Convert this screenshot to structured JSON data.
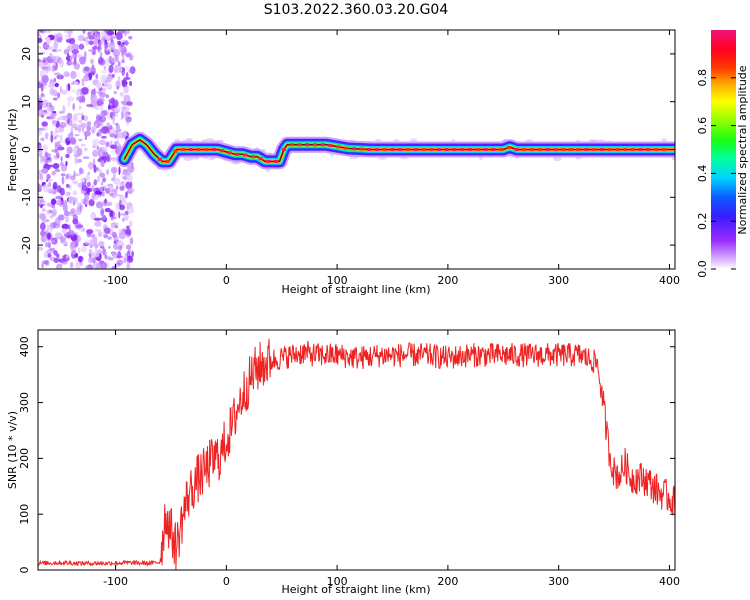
{
  "title": "S103.2022.360.03.20.G04",
  "colors": {
    "snr_line": "#ee2222",
    "axis": "#000000",
    "spectrogram_ridge": "#ff2020",
    "background": "#ffffff"
  },
  "chart_data": [
    {
      "type": "heatmap",
      "title": "S103.2022.360.03.20.G04",
      "xlabel": "Height of straight line (km)",
      "ylabel": "Frequency (Hz)",
      "xlim": [
        -170,
        405
      ],
      "ylim": [
        -25,
        25
      ],
      "xticks": [
        -100,
        0,
        100,
        200,
        300,
        400
      ],
      "yticks": [
        -20,
        -10,
        0,
        10,
        20
      ],
      "noise_region_x": [
        -170,
        -90
      ],
      "colorbar": {
        "label": "Normalized spectral amplitude",
        "range": [
          0.0,
          1.0
        ],
        "ticks": [
          0.0,
          0.2,
          0.4,
          0.6,
          0.8
        ],
        "colormap": "rainbow (white-violet-blue-cyan-green-yellow-red-magenta)"
      },
      "ridge": {
        "x": [
          -92,
          -85,
          -78,
          -72,
          -65,
          -58,
          -52,
          -45,
          -38,
          -30,
          -22,
          -15,
          -8,
          0,
          8,
          15,
          22,
          28,
          35,
          42,
          48,
          52,
          55,
          70,
          90,
          110,
          130,
          150,
          170,
          200,
          230,
          250,
          256,
          262,
          280,
          310,
          340,
          370,
          405
        ],
        "y": [
          -2,
          1,
          2,
          1,
          -1,
          -2.5,
          -2.5,
          0,
          0,
          0,
          0,
          0,
          0,
          -0.5,
          -1,
          -1,
          -1.5,
          -1.5,
          -2.5,
          -2.5,
          -2.5,
          0,
          1,
          1,
          1,
          0.2,
          0,
          0,
          0,
          0,
          0,
          0,
          0.5,
          0,
          0,
          0,
          0,
          0,
          0
        ]
      }
    },
    {
      "type": "line",
      "xlabel": "Height of straight line (km)",
      "ylabel": "SNR (10 * v/v)",
      "xlim": [
        -170,
        405
      ],
      "ylim": [
        0,
        430
      ],
      "xticks": [
        -100,
        0,
        100,
        200,
        300,
        400
      ],
      "yticks": [
        0,
        100,
        200,
        300,
        400
      ],
      "series": [
        {
          "x": [
            -170,
            -150,
            -130,
            -110,
            -90,
            -70,
            -60,
            -55,
            -50,
            -45,
            -40,
            -35,
            -30,
            -25,
            -20,
            -15,
            -10,
            -5,
            0,
            5,
            10,
            15,
            20,
            25,
            30,
            35,
            40,
            50,
            60,
            70,
            80,
            90,
            100,
            120,
            140,
            160,
            180,
            200,
            220,
            240,
            260,
            280,
            300,
            320,
            335,
            340,
            345,
            350,
            355,
            360,
            365,
            370,
            375,
            380,
            390,
            400,
            405
          ],
          "values": [
            12,
            13,
            12,
            12,
            13,
            12,
            14,
            100,
            70,
            40,
            90,
            130,
            150,
            165,
            175,
            190,
            200,
            205,
            235,
            255,
            290,
            315,
            335,
            355,
            365,
            370,
            375,
            380,
            385,
            390,
            385,
            385,
            385,
            380,
            385,
            385,
            385,
            380,
            385,
            385,
            385,
            385,
            385,
            385,
            370,
            300,
            220,
            175,
            170,
            190,
            165,
            165,
            165,
            160,
            140,
            130,
            120
          ]
        }
      ]
    }
  ]
}
